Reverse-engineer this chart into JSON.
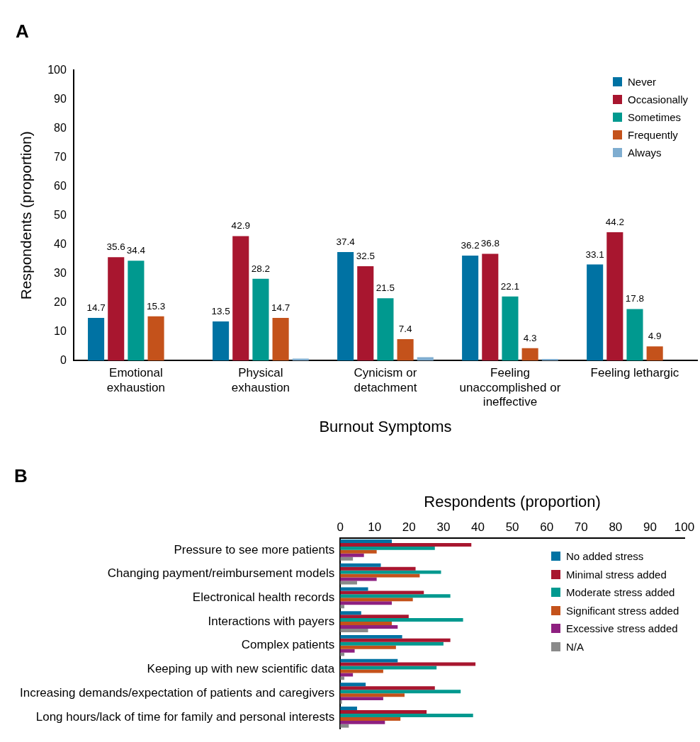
{
  "chart_data": [
    {
      "type": "bar",
      "title": "A",
      "xlabel": "Burnout Symptoms",
      "ylabel": "Respondents (proportion)",
      "categories": [
        "Emotional exhaustion",
        "Physical exhaustion",
        "Cynicism or detachment",
        "Feeling unaccomplished or ineffective",
        "Feeling lethargic"
      ],
      "series": [
        {
          "name": "Never",
          "color": "#0072a3",
          "values": [
            14.7,
            13.5,
            37.4,
            36.2,
            33.1
          ],
          "value_labels": [
            "14.7",
            "13.5",
            "37.4",
            "36.2",
            "33.1"
          ]
        },
        {
          "name": "Occasionally",
          "color": "#a8162f",
          "values": [
            35.6,
            42.9,
            32.5,
            36.8,
            44.2
          ],
          "value_labels": [
            "35.6",
            "42.9",
            "32.5",
            "36.8",
            "44.2"
          ]
        },
        {
          "name": "Sometimes",
          "color": "#00998f",
          "values": [
            34.4,
            28.2,
            21.5,
            22.1,
            17.8
          ],
          "value_labels": [
            "34.4",
            "28.2",
            "21.5",
            "22.1",
            "17.8"
          ]
        },
        {
          "name": "Frequently",
          "color": "#c4521b",
          "values": [
            15.3,
            14.7,
            7.4,
            4.3,
            4.9
          ],
          "value_labels": [
            "15.3",
            "14.7",
            "7.4",
            "4.3",
            "4.9"
          ]
        },
        {
          "name": "Always",
          "color": "#7fadd0",
          "values": [
            0,
            0.7,
            1.2,
            0.6,
            0
          ]
        }
      ],
      "ylim": [
        0,
        100
      ],
      "yticks": [
        0,
        10,
        20,
        30,
        40,
        50,
        60,
        70,
        80,
        90,
        100
      ],
      "grid": false,
      "legend": "top right"
    },
    {
      "type": "bar",
      "title": "B",
      "orientation": "horizontal",
      "xlabel": "Respondents (proportion)",
      "categories": [
        "Pressure to see more patients",
        "Changing payment/reimbursement models",
        "Electronical health records",
        "Interactions with payers",
        "Complex patients",
        "Keeping up with new scientific data",
        "Increasing demands/expectation of patients and caregivers",
        "Long hours/lack of time for family and personal interests"
      ],
      "series": [
        {
          "name": "No added stress",
          "color": "#0072a3",
          "values": [
            15.0,
            11.8,
            8.1,
            6.1,
            18.0,
            16.7,
            7.4,
            4.9
          ]
        },
        {
          "name": "Minimal stress added",
          "color": "#a8162f",
          "values": [
            38.1,
            21.9,
            24.3,
            19.9,
            32.0,
            39.3,
            27.5,
            25.1
          ]
        },
        {
          "name": "Moderate stress added",
          "color": "#00998f",
          "values": [
            27.5,
            29.3,
            32.0,
            35.7,
            30.0,
            28.0,
            35.0,
            38.6
          ]
        },
        {
          "name": "Significant stress added",
          "color": "#c4521b",
          "values": [
            10.6,
            23.1,
            21.1,
            15.0,
            16.2,
            12.5,
            18.7,
            17.5
          ]
        },
        {
          "name": "Excessive stress added",
          "color": "#8e2080",
          "values": [
            6.9,
            10.6,
            15.0,
            16.7,
            4.2,
            3.7,
            12.5,
            13.0
          ]
        },
        {
          "name": "N/A",
          "color": "#8a8a8a",
          "values": [
            3.7,
            4.9,
            1.2,
            8.1,
            1.2,
            1.2,
            0.5,
            2.5
          ]
        }
      ],
      "xlim": [
        0,
        100
      ],
      "xticks": [
        0,
        10,
        20,
        30,
        40,
        50,
        60,
        70,
        80,
        90,
        100
      ],
      "grid": false,
      "legend": "right"
    }
  ]
}
